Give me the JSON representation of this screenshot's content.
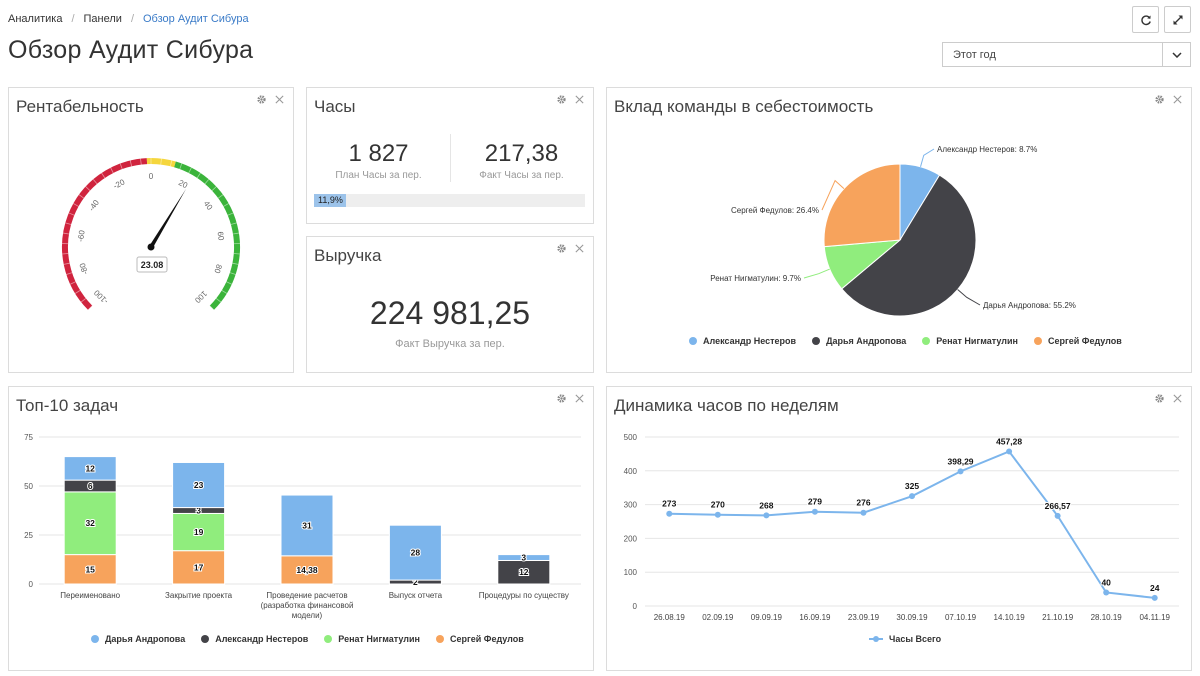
{
  "breadcrumb": {
    "items": [
      "Аналитика",
      "Панели",
      "Обзор Аудит Сибура"
    ]
  },
  "page": {
    "title": "Обзор Аудит Сибура"
  },
  "period": {
    "value": "Этот год"
  },
  "colors": {
    "blue": "#7cb5ec",
    "dark": "#434348",
    "green": "#90ed7d",
    "orange": "#f7a35c",
    "gauge_red": "#d0243e",
    "gauge_yellow": "#f5d63d",
    "gauge_green": "#3bb43b"
  },
  "profitability": {
    "title": "Рентабельность",
    "value_label": "23.08",
    "value": 23.08,
    "min": -100,
    "max": 100,
    "ticks": [
      "-100",
      "-80",
      "-60",
      "-40",
      "-20",
      "0",
      "20",
      "40",
      "60",
      "80",
      "100"
    ]
  },
  "hours": {
    "title": "Часы",
    "plan_value": "1 827",
    "plan_label": "План Часы за пер.",
    "fact_value": "217,38",
    "fact_label": "Факт Часы за пер.",
    "progress_label": "11,9%",
    "progress": 0.119
  },
  "revenue": {
    "title": "Выручка",
    "value": "224 981,25",
    "label": "Факт Выручка за пер."
  },
  "team_cost": {
    "title": "Вклад команды в себестоимость",
    "slice_labels": [
      "Александр Нестеров: 8.7%",
      "Дарья Андропова: 55.2%",
      "Ренат Нигматулин: 9.7%",
      "Сергей Федулов: 26.4%"
    ],
    "legend": [
      "Александр Нестеров",
      "Дарья Андропова",
      "Ренат Нигматулин",
      "Сергей Федулов"
    ]
  },
  "top_tasks": {
    "title": "Топ-10 задач",
    "legend": [
      "Дарья Андропова",
      "Александр Нестеров",
      "Ренат Нигматулин",
      "Сергей Федулов"
    ]
  },
  "weekly": {
    "title": "Динамика часов по неделям",
    "legend": [
      "Часы Всего"
    ]
  },
  "chart_data": [
    {
      "type": "pie",
      "title": "Вклад команды в себестоимость",
      "categories": [
        "Александр Нестеров",
        "Дарья Андропова",
        "Ренат Нигматулин",
        "Сергей Федулов"
      ],
      "values": [
        8.7,
        55.2,
        9.7,
        26.4
      ],
      "colors": [
        "#7cb5ec",
        "#434348",
        "#90ed7d",
        "#f7a35c"
      ],
      "legend": "bottom"
    },
    {
      "type": "bar",
      "title": "Топ-10 задач",
      "stacked": true,
      "categories": [
        "Переименовано",
        "Закрытие проекта",
        "Проведение расчетов (разработка финансовой модели)",
        "Выпуск отчета",
        "Процедуры по существу"
      ],
      "category_lines": [
        [
          "Переименовано"
        ],
        [
          "Закрытие проекта"
        ],
        [
          "Проведение расчетов",
          "(разработка финансовой",
          "модели)"
        ],
        [
          "Выпуск отчета"
        ],
        [
          "Процедуры по существу"
        ]
      ],
      "series": [
        {
          "name": "Сергей Федулов",
          "color": "#f7a35c",
          "values": [
            15,
            17,
            14.38,
            0,
            0
          ],
          "labels": [
            "15",
            "17",
            "14,38",
            "",
            ""
          ]
        },
        {
          "name": "Ренат Нигматулин",
          "color": "#90ed7d",
          "values": [
            32,
            19,
            0,
            0,
            0
          ],
          "labels": [
            "32",
            "19",
            "",
            "",
            ""
          ]
        },
        {
          "name": "Александр Нестеров",
          "color": "#434348",
          "values": [
            6,
            3,
            0,
            2,
            12
          ],
          "labels": [
            "6",
            "3",
            "",
            "2",
            "12"
          ]
        },
        {
          "name": "Дарья Андропова",
          "color": "#7cb5ec",
          "values": [
            12,
            23,
            31,
            28,
            3
          ],
          "labels": [
            "12",
            "23",
            "31",
            "28",
            "3"
          ]
        }
      ],
      "yticks": [
        0,
        25,
        50,
        75
      ],
      "ylim": [
        0,
        75
      ],
      "legend": "bottom"
    },
    {
      "type": "line",
      "title": "Динамика часов по неделям",
      "categories": [
        "26.08.19",
        "02.09.19",
        "09.09.19",
        "16.09.19",
        "23.09.19",
        "30.09.19",
        "07.10.19",
        "14.10.19",
        "21.10.19",
        "28.10.19",
        "04.11.19"
      ],
      "series": [
        {
          "name": "Часы Всего",
          "color": "#7cb5ec",
          "values": [
            273,
            270,
            268,
            279,
            276,
            325,
            398.29,
            457.28,
            266.57,
            40,
            24
          ],
          "labels": [
            "273",
            "270",
            "268",
            "279",
            "276",
            "325",
            "398,29",
            "457,28",
            "266,57",
            "40",
            "24"
          ]
        }
      ],
      "yticks": [
        0,
        100,
        200,
        300,
        400,
        500
      ],
      "ylim": [
        0,
        500
      ],
      "grid": true,
      "legend": "bottom"
    }
  ]
}
